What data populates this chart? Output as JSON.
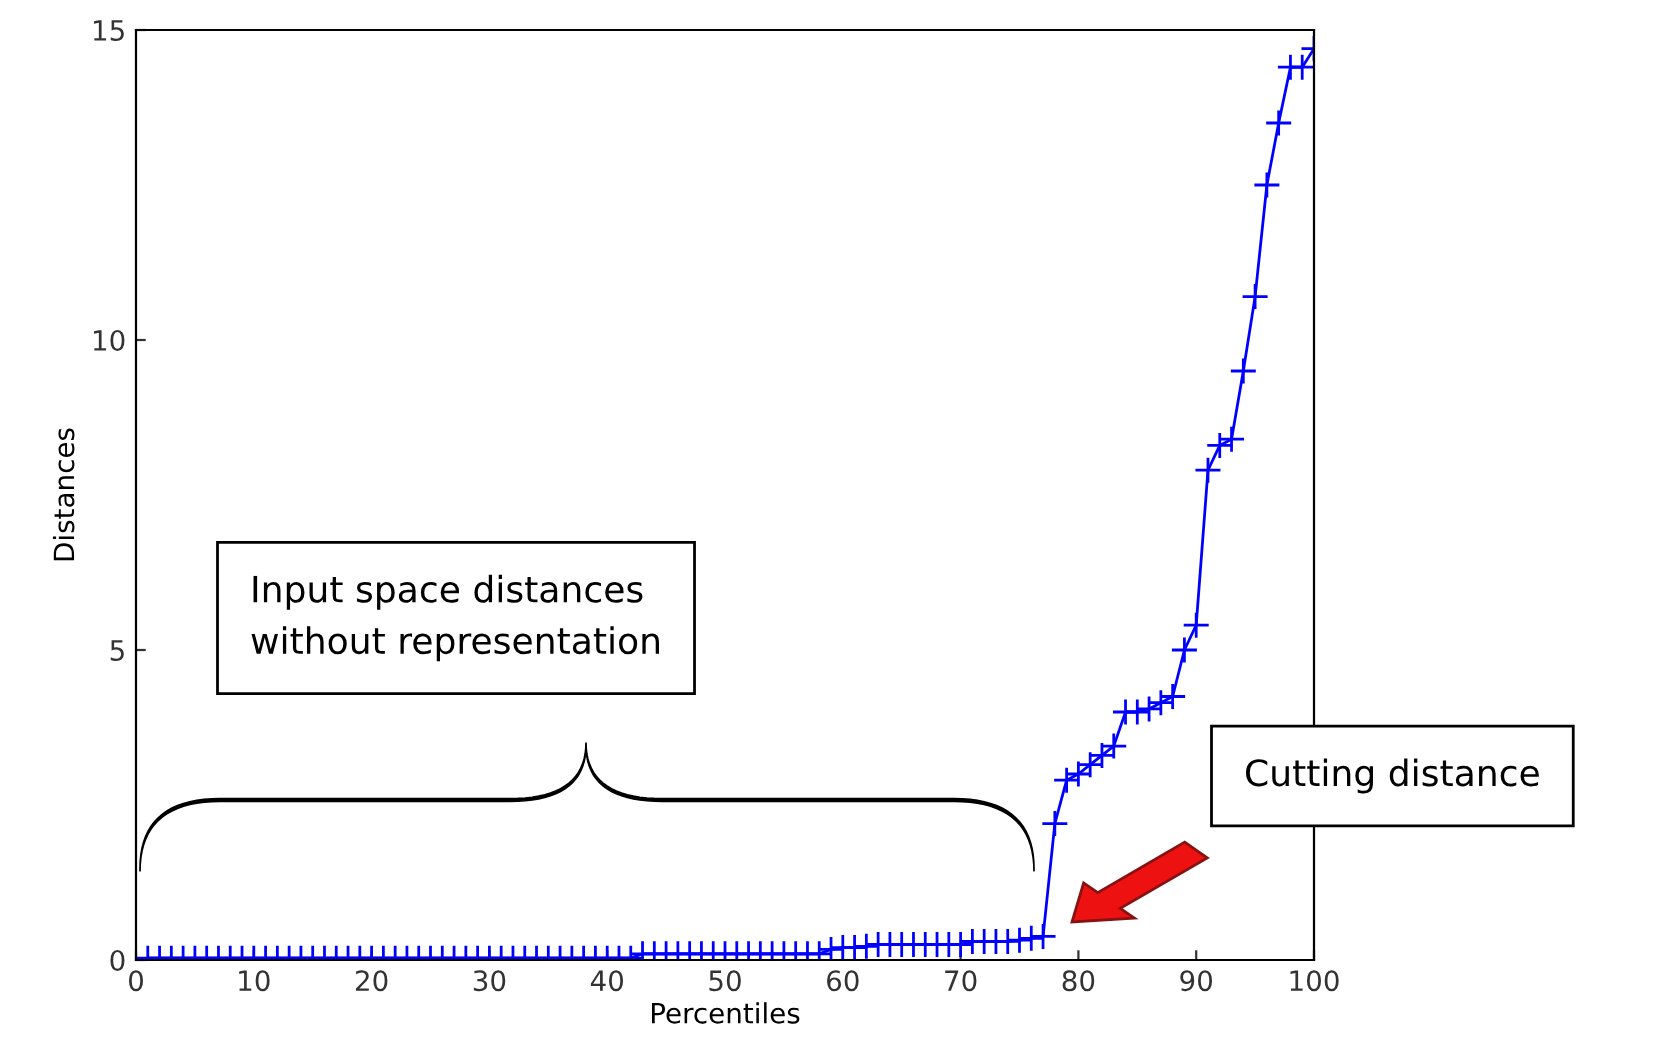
{
  "chart_data": {
    "type": "line",
    "xlabel": "Percentiles",
    "ylabel": "Distances",
    "x": [
      1,
      2,
      3,
      4,
      5,
      6,
      7,
      8,
      9,
      10,
      11,
      12,
      13,
      14,
      15,
      16,
      17,
      18,
      19,
      20,
      21,
      22,
      23,
      24,
      25,
      26,
      27,
      28,
      29,
      30,
      31,
      32,
      33,
      34,
      35,
      36,
      37,
      38,
      39,
      40,
      41,
      42,
      43,
      44,
      45,
      46,
      47,
      48,
      49,
      50,
      51,
      52,
      53,
      54,
      55,
      56,
      57,
      58,
      59,
      60,
      61,
      62,
      63,
      64,
      65,
      66,
      67,
      68,
      69,
      70,
      71,
      72,
      73,
      74,
      75,
      76,
      77,
      78,
      79,
      80,
      81,
      82,
      83,
      84,
      85,
      86,
      87,
      88,
      89,
      90,
      91,
      92,
      93,
      94,
      95,
      96,
      97,
      98,
      99,
      100
    ],
    "series": [
      {
        "color": "#0000ff",
        "values": [
          0.03,
          0.03,
          0.03,
          0.03,
          0.03,
          0.03,
          0.03,
          0.03,
          0.03,
          0.03,
          0.03,
          0.03,
          0.03,
          0.03,
          0.03,
          0.03,
          0.03,
          0.03,
          0.03,
          0.03,
          0.03,
          0.03,
          0.03,
          0.03,
          0.03,
          0.03,
          0.03,
          0.03,
          0.03,
          0.03,
          0.03,
          0.03,
          0.03,
          0.03,
          0.03,
          0.03,
          0.03,
          0.03,
          0.03,
          0.03,
          0.03,
          0.03,
          0.1,
          0.1,
          0.1,
          0.1,
          0.1,
          0.1,
          0.1,
          0.1,
          0.1,
          0.1,
          0.1,
          0.1,
          0.1,
          0.1,
          0.1,
          0.1,
          0.17,
          0.2,
          0.2,
          0.22,
          0.25,
          0.25,
          0.25,
          0.25,
          0.25,
          0.25,
          0.25,
          0.25,
          0.3,
          0.3,
          0.3,
          0.3,
          0.32,
          0.35,
          0.38,
          2.2,
          2.9,
          3.0,
          3.15,
          3.3,
          3.45,
          4.0,
          4.0,
          4.05,
          4.15,
          4.25,
          5.0,
          5.4,
          7.9,
          8.3,
          8.4,
          9.5,
          10.7,
          12.5,
          13.5,
          14.4,
          14.4,
          14.7
        ]
      }
    ],
    "xlim": [
      0,
      100
    ],
    "ylim": [
      0,
      15
    ],
    "xticks": [
      0,
      10,
      20,
      30,
      40,
      50,
      60,
      70,
      80,
      90,
      100
    ],
    "yticks": [
      0,
      5,
      10,
      15
    ],
    "marker": "cross",
    "line_style": "solid",
    "grid": false,
    "annotations": [
      "Input space distances\nwithout representation",
      "Cutting distance"
    ]
  }
}
